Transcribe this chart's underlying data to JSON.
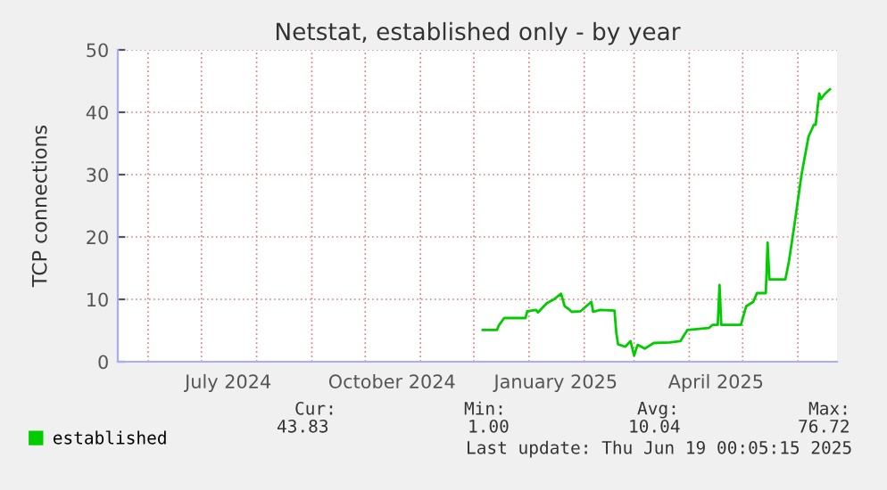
{
  "chart_data": {
    "type": "line",
    "title": "Netstat, established only - by year",
    "ylabel": "TCP connections",
    "xlim": [
      "2024-05-15",
      "2025-06-23"
    ],
    "ylim": [
      0,
      50
    ],
    "yticks": [
      0,
      10,
      20,
      30,
      40,
      50
    ],
    "xticks": [
      {
        "value": "2024-06-01",
        "label": null
      },
      {
        "value": "2024-07-01",
        "label": null
      },
      {
        "value": "2024-07-16",
        "label": "July 2024"
      },
      {
        "value": "2024-08-01",
        "label": null
      },
      {
        "value": "2024-09-01",
        "label": null
      },
      {
        "value": "2024-10-01",
        "label": null
      },
      {
        "value": "2024-10-16",
        "label": "October 2024"
      },
      {
        "value": "2024-11-01",
        "label": null
      },
      {
        "value": "2024-12-01",
        "label": null
      },
      {
        "value": "2025-01-01",
        "label": null
      },
      {
        "value": "2025-01-16",
        "label": "January 2025"
      },
      {
        "value": "2025-02-01",
        "label": null
      },
      {
        "value": "2025-03-01",
        "label": null
      },
      {
        "value": "2025-04-01",
        "label": null
      },
      {
        "value": "2025-04-16",
        "label": "April 2025"
      },
      {
        "value": "2025-05-01",
        "label": null
      },
      {
        "value": "2025-06-01",
        "label": null
      }
    ],
    "grid": true,
    "legend": "bottom",
    "series": [
      {
        "name": "established",
        "color": "#00cc00",
        "x": [
          "2024-12-06",
          "2024-12-14",
          "2024-12-15",
          "2024-12-18",
          "2024-12-30",
          "2024-12-31",
          "2025-01-05",
          "2025-01-06",
          "2025-01-11",
          "2025-01-15",
          "2025-01-19",
          "2025-01-21",
          "2025-01-23",
          "2025-01-25",
          "2025-01-30",
          "2025-02-05",
          "2025-02-06",
          "2025-02-10",
          "2025-02-18",
          "2025-02-19",
          "2025-02-20",
          "2025-02-24",
          "2025-02-27",
          "2025-03-01",
          "2025-03-03",
          "2025-03-07",
          "2025-03-12",
          "2025-03-21",
          "2025-03-27",
          "2025-03-31",
          "2025-04-12",
          "2025-04-14",
          "2025-04-17",
          "2025-04-18",
          "2025-04-19",
          "2025-04-30",
          "2025-05-03",
          "2025-05-07",
          "2025-05-09",
          "2025-05-14",
          "2025-05-15",
          "2025-05-16",
          "2025-05-25",
          "2025-05-27",
          "2025-05-30",
          "2025-06-03",
          "2025-06-07",
          "2025-06-10",
          "2025-06-11",
          "2025-06-13",
          "2025-06-14",
          "2025-06-16",
          "2025-06-19"
        ],
        "values": [
          5.1,
          5.1,
          5.8,
          7.0,
          7.0,
          8.1,
          8.3,
          7.9,
          9.4,
          10.0,
          10.9,
          8.9,
          8.5,
          8.0,
          8.1,
          9.6,
          8.0,
          8.3,
          8.2,
          4.7,
          2.8,
          2.4,
          3.3,
          1.0,
          2.7,
          2.1,
          3.0,
          3.1,
          3.3,
          5.1,
          5.4,
          5.9,
          5.9,
          12.3,
          5.9,
          5.9,
          8.9,
          9.6,
          11.0,
          11.0,
          19.1,
          13.2,
          13.2,
          16.1,
          21.8,
          29.9,
          36.1,
          38.0,
          38.0,
          43.0,
          42.1,
          42.9,
          43.7
        ]
      }
    ],
    "annotations": [
      "Cur:",
      "Min:",
      "Avg:",
      "Max:",
      "43.83",
      "1.00",
      "10.04",
      "76.72",
      "Last update: Thu Jun 19 00:05:15 2025"
    ]
  }
}
